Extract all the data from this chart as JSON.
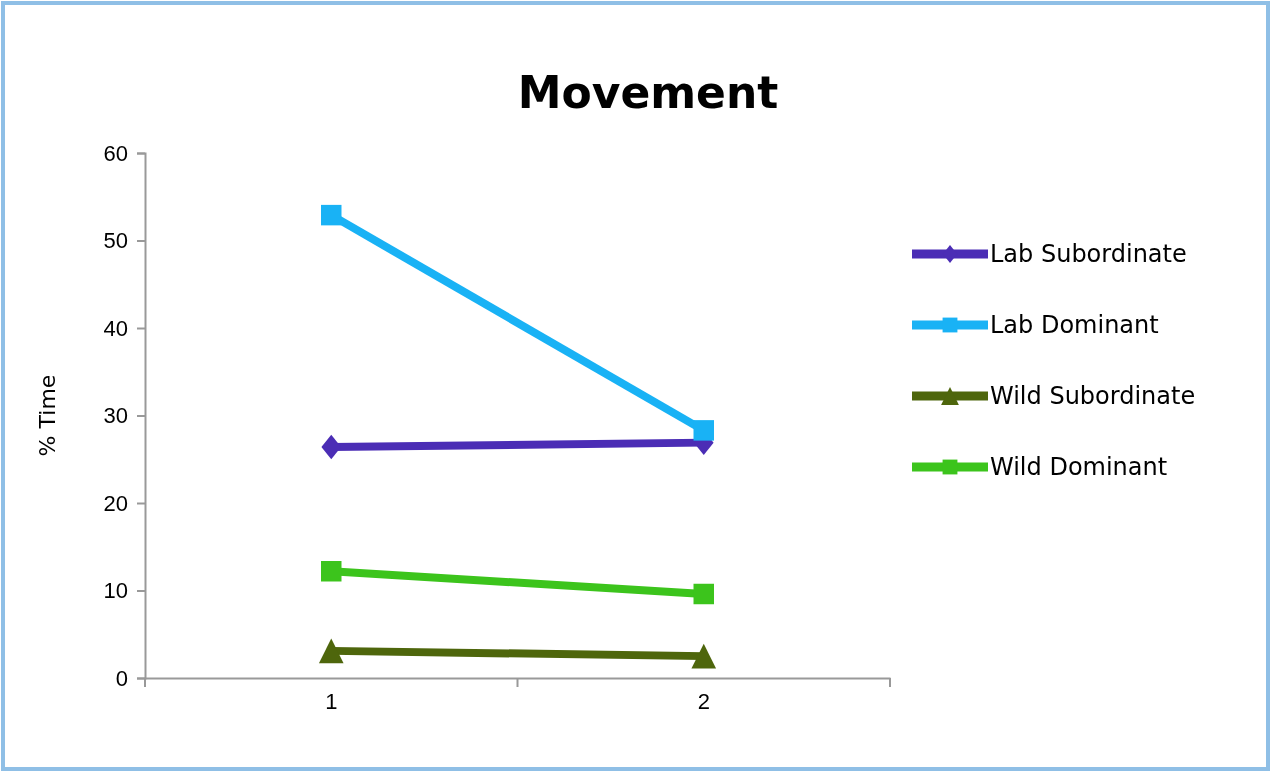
{
  "chart_data": {
    "type": "line",
    "title": "Movement",
    "ylabel": "% Time",
    "categories": [
      "1",
      "2"
    ],
    "ylim": [
      0,
      60
    ],
    "yticks": [
      0,
      10,
      20,
      30,
      40,
      50,
      60
    ],
    "grid": false,
    "legend": "right",
    "line_style": "solid",
    "series": [
      {
        "name": "Lab Subordinate",
        "color": "#4b2db5",
        "marker": "diamond",
        "values": [
          26.4,
          26.9
        ]
      },
      {
        "name": "Lab Dominant",
        "color": "#19b2f5",
        "marker": "square",
        "values": [
          52.9,
          28.3
        ]
      },
      {
        "name": "Wild Subordinate",
        "color": "#4e660c",
        "marker": "triangle",
        "values": [
          3.1,
          2.5
        ]
      },
      {
        "name": "Wild Dominant",
        "color": "#3cc41c",
        "marker": "square",
        "values": [
          12.2,
          9.6
        ]
      }
    ]
  }
}
